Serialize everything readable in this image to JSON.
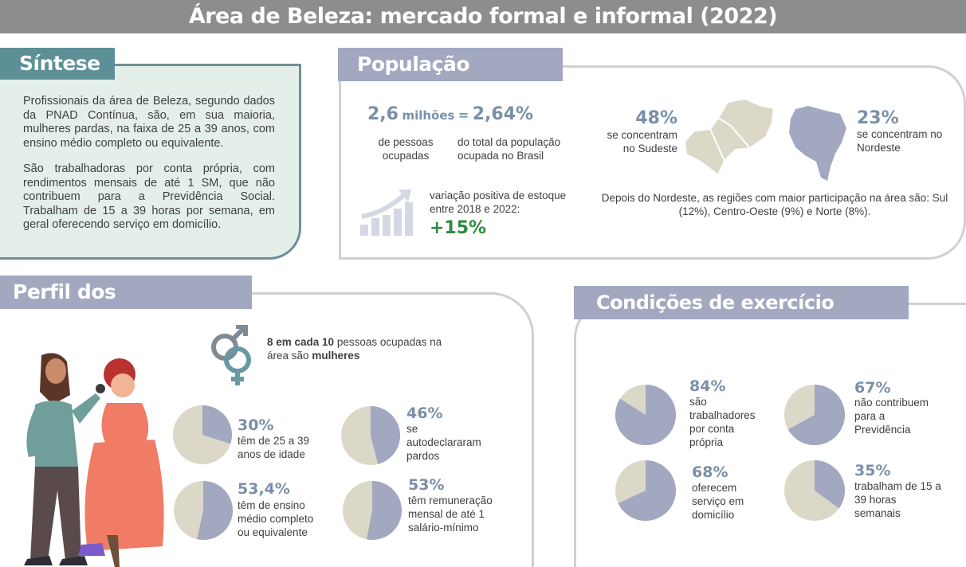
{
  "header": {
    "title": "Área de Beleza: mercado formal e informal (2022)"
  },
  "sintese": {
    "title": "Síntese",
    "p1": "Profissionais da área de Beleza, segundo dados da PNAD Contínua, são, em sua maioria, mulheres pardas, na faixa de 25 a 39 anos, com ensino médio completo ou equivalente.",
    "p2": "São trabalhadoras por conta própria, com rendimentos mensais de até 1 SM, que não contribuem para a Previdência Social. Trabalham de 15 a 39 horas por semana, em geral oferecendo serviço em domicílio."
  },
  "populacao": {
    "title": "População ocupada",
    "total_value": "2,6",
    "total_unit": "milhões",
    "equals": "=",
    "share_value": "2,64%",
    "total_caption": "de pessoas ocupadas",
    "share_caption": "do total da população ocupada no Brasil",
    "variation_caption": "variação positiva de estoque entre 2018 e 2022:",
    "variation_value": "+15%",
    "sudeste_pct": "48%",
    "sudeste_caption": "se concentram no Sudeste",
    "nordeste_pct": "23%",
    "nordeste_caption": "se concentram no Nordeste",
    "regions_note": "Depois do Nordeste, as regiões com maior participação na área são: Sul (12%), Centro-Oeste (9%) e Norte (8%)."
  },
  "perfil": {
    "title": "Perfil dos trabalhadores",
    "gender_bold1": "8 em cada 10",
    "gender_text1": "pessoas ocupadas na área são",
    "gender_bold2": "mulheres",
    "stats": [
      {
        "value": "30%",
        "fraction": 0.3,
        "caption": "têm de 25 a 39 anos de idade"
      },
      {
        "value": "46%",
        "fraction": 0.46,
        "caption": "se autodeclararam pardos"
      },
      {
        "value": "53,4%",
        "fraction": 0.534,
        "caption": "têm de ensino médio completo ou equivalente"
      },
      {
        "value": "53%",
        "fraction": 0.53,
        "caption": "têm remuneração mensal de até 1 salário-mínimo"
      }
    ]
  },
  "condicoes": {
    "title": "Condições de exercício profissional",
    "stats": [
      {
        "value": "84%",
        "fraction": 0.84,
        "caption": "são trabalhadores por conta própria"
      },
      {
        "value": "67%",
        "fraction": 0.67,
        "caption": "não contribuem para a Previdência"
      },
      {
        "value": "68%",
        "fraction": 0.68,
        "caption": "oferecem serviço em domicílio"
      },
      {
        "value": "35%",
        "fraction": 0.35,
        "caption": "trabalham de 15 a 39 horas semanais"
      }
    ]
  },
  "colors": {
    "slate": "#a2a8c0",
    "beige": "#dcd8c8",
    "teal": "#5d8f97",
    "mint": "#e4efea",
    "gray": "#8b8d8f",
    "green": "#2e8b3e"
  }
}
